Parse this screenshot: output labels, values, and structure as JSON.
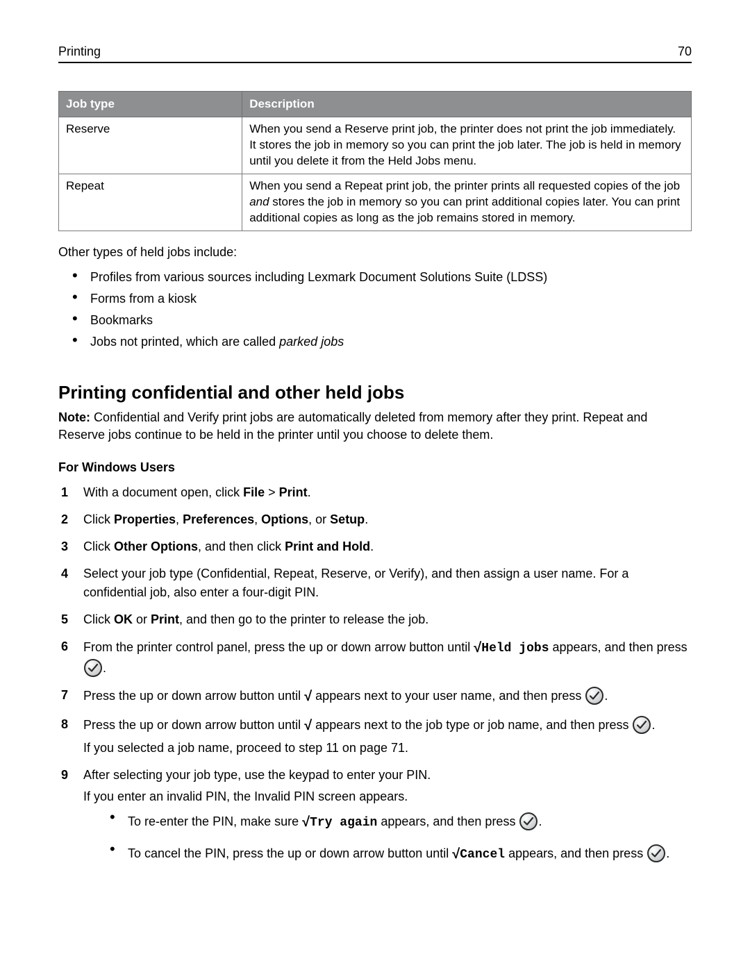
{
  "header": {
    "section": "Printing",
    "page": "70"
  },
  "table": {
    "columns": [
      "Job type",
      "Description"
    ],
    "rows": [
      {
        "type": "Reserve",
        "desc_parts": [
          "When you send a Reserve print job, the printer does not print the job immediately. It stores the job in memory so you can print the job later. The job is held in memory until you delete it from the Held Jobs menu."
        ]
      },
      {
        "type": "Repeat",
        "desc_parts": [
          "When you send a Repeat print job, the printer prints all requested copies of the job ",
          {
            "italic": "and"
          },
          " stores the job in memory so you can print additional copies later. You can print additional copies as long as the job remains stored in memory."
        ]
      }
    ]
  },
  "intro_after_table": "Other types of held jobs include:",
  "other_types": [
    [
      {
        "text": "Profiles from various sources including Lexmark Document Solutions Suite (LDSS)"
      }
    ],
    [
      {
        "text": "Forms from a kiosk"
      }
    ],
    [
      {
        "text": "Bookmarks"
      }
    ],
    [
      {
        "text": "Jobs not printed, which are called "
      },
      {
        "italic": "parked jobs"
      }
    ]
  ],
  "section_title": "Printing confidential and other held jobs",
  "note": {
    "label": "Note:",
    "text": " Confidential and Verify print jobs are automatically deleted from memory after they print. Repeat and Reserve jobs continue to be held in the printer until you choose to delete them."
  },
  "subsection": "For Windows Users",
  "steps": [
    [
      {
        "text": "With a document open, click "
      },
      {
        "bold": "File"
      },
      {
        "text": " > "
      },
      {
        "bold": "Print"
      },
      {
        "text": "."
      }
    ],
    [
      {
        "text": "Click "
      },
      {
        "bold": "Properties"
      },
      {
        "text": ", "
      },
      {
        "bold": "Preferences"
      },
      {
        "text": ", "
      },
      {
        "bold": "Options"
      },
      {
        "text": ", or "
      },
      {
        "bold": "Setup"
      },
      {
        "text": "."
      }
    ],
    [
      {
        "text": "Click "
      },
      {
        "bold": "Other Options"
      },
      {
        "text": ", and then click "
      },
      {
        "bold": "Print and Hold"
      },
      {
        "text": "."
      }
    ],
    [
      {
        "text": "Select your job type (Confidential, Repeat, Reserve, or Verify), and then assign a user name. For a confidential job, also enter a four-digit PIN."
      }
    ],
    [
      {
        "text": "Click "
      },
      {
        "bold": "OK"
      },
      {
        "text": " or "
      },
      {
        "bold": "Print"
      },
      {
        "text": ", and then go to the printer to release the job."
      }
    ],
    [
      {
        "text": "From the printer control panel, press the up or down arrow button until "
      },
      {
        "check": true
      },
      {
        "mono": "Held jobs"
      },
      {
        "text": " appears, and then press "
      },
      {
        "selectbtn": true
      },
      {
        "text": "."
      }
    ],
    [
      {
        "text": "Press the up or down arrow button until "
      },
      {
        "check": true
      },
      {
        "text": " appears next to your user name, and then press "
      },
      {
        "selectbtn": true
      },
      {
        "text": "."
      }
    ],
    [
      {
        "text": "Press the up or down arrow button until "
      },
      {
        "check": true
      },
      {
        "text": " appears next to the job type or job name, and then press "
      },
      {
        "selectbtn": true
      },
      {
        "text": "."
      },
      {
        "break": true
      },
      {
        "text": "If you selected a job name, proceed to step 11 on page 71."
      }
    ],
    [
      {
        "text": "After selecting your job type, use the keypad to enter your PIN."
      },
      {
        "break": true
      },
      {
        "text": "If you enter an invalid PIN, the Invalid PIN screen appears."
      },
      {
        "sublist": [
          [
            {
              "text": "To re-enter the PIN, make sure "
            },
            {
              "check": true
            },
            {
              "mono": "Try again"
            },
            {
              "text": " appears, and then press "
            },
            {
              "selectbtn": true
            },
            {
              "text": "."
            }
          ],
          [
            {
              "text": "To cancel the PIN, press the up or down arrow button until "
            },
            {
              "check": true
            },
            {
              "mono": "Cancel"
            },
            {
              "text": " appears, and then press "
            },
            {
              "selectbtn": true
            },
            {
              "text": "."
            }
          ]
        ]
      }
    ]
  ],
  "colors": {
    "table_header_bg": "#8e8f91",
    "table_header_fg": "#ffffff",
    "border": "#7a7b7d",
    "text": "#000000",
    "select_ring": "#3a3a3a",
    "select_fill": "#e4e6e8"
  }
}
